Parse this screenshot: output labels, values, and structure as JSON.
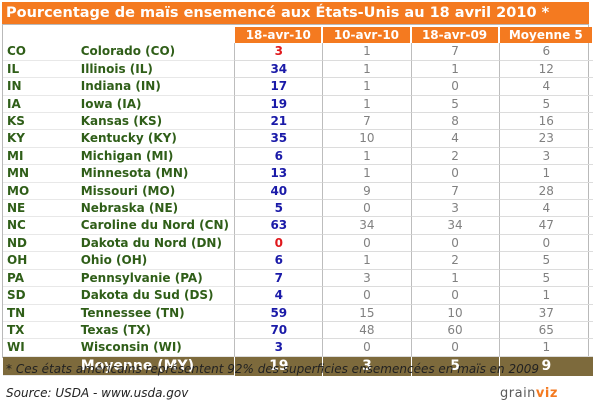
{
  "title": "Pourcentage de maïs ensemencé aux États-Unis au 18 avril 2010 *",
  "columns": [
    "18-avr-10",
    "10-avr-10",
    "18-avr-09",
    "Moyenne 5"
  ],
  "rows": [
    {
      "abbr": "CO",
      "name": "Colorado (CO)",
      "cur": "3",
      "cur_color": "#e0181c",
      "prev": "1",
      "lastyear": "7",
      "avg5": "6"
    },
    {
      "abbr": "IL",
      "name": "Illinois (IL)",
      "cur": "34",
      "cur_color": "#1a1aa8",
      "prev": "1",
      "lastyear": "1",
      "avg5": "12"
    },
    {
      "abbr": "IN",
      "name": "Indiana (IN)",
      "cur": "17",
      "cur_color": "#1a1aa8",
      "prev": "1",
      "lastyear": "0",
      "avg5": "4"
    },
    {
      "abbr": "IA",
      "name": "Iowa (IA)",
      "cur": "19",
      "cur_color": "#1a1aa8",
      "prev": "1",
      "lastyear": "5",
      "avg5": "5"
    },
    {
      "abbr": "KS",
      "name": "Kansas (KS)",
      "cur": "21",
      "cur_color": "#1a1aa8",
      "prev": "7",
      "lastyear": "8",
      "avg5": "16"
    },
    {
      "abbr": "KY",
      "name": "Kentucky (KY)",
      "cur": "35",
      "cur_color": "#1a1aa8",
      "prev": "10",
      "lastyear": "4",
      "avg5": "23"
    },
    {
      "abbr": "MI",
      "name": "Michigan (MI)",
      "cur": "6",
      "cur_color": "#1a1aa8",
      "prev": "1",
      "lastyear": "2",
      "avg5": "3"
    },
    {
      "abbr": "MN",
      "name": "Minnesota (MN)",
      "cur": "13",
      "cur_color": "#1a1aa8",
      "prev": "1",
      "lastyear": "0",
      "avg5": "1"
    },
    {
      "abbr": "MO",
      "name": "Missouri (MO)",
      "cur": "40",
      "cur_color": "#1a1aa8",
      "prev": "9",
      "lastyear": "7",
      "avg5": "28"
    },
    {
      "abbr": "NE",
      "name": "Nebraska (NE)",
      "cur": "5",
      "cur_color": "#1a1aa8",
      "prev": "0",
      "lastyear": "3",
      "avg5": "4"
    },
    {
      "abbr": "NC",
      "name": "Caroline du Nord (CN)",
      "cur": "63",
      "cur_color": "#1a1aa8",
      "prev": "34",
      "lastyear": "34",
      "avg5": "47"
    },
    {
      "abbr": "ND",
      "name": "Dakota du Nord (DN)",
      "cur": "0",
      "cur_color": "#e0181c",
      "prev": "0",
      "lastyear": "0",
      "avg5": "0"
    },
    {
      "abbr": "OH",
      "name": "Ohio (OH)",
      "cur": "6",
      "cur_color": "#1a1aa8",
      "prev": "1",
      "lastyear": "2",
      "avg5": "5"
    },
    {
      "abbr": "PA",
      "name": "Pennsylvanie (PA)",
      "cur": "7",
      "cur_color": "#1a1aa8",
      "prev": "3",
      "lastyear": "1",
      "avg5": "5"
    },
    {
      "abbr": "SD",
      "name": "Dakota du Sud (DS)",
      "cur": "4",
      "cur_color": "#1a1aa8",
      "prev": "0",
      "lastyear": "0",
      "avg5": "1"
    },
    {
      "abbr": "TN",
      "name": "Tennessee (TN)",
      "cur": "59",
      "cur_color": "#1a1aa8",
      "prev": "15",
      "lastyear": "10",
      "avg5": "37"
    },
    {
      "abbr": "TX",
      "name": "Texas (TX)",
      "cur": "70",
      "cur_color": "#1a1aa8",
      "prev": "48",
      "lastyear": "60",
      "avg5": "65"
    },
    {
      "abbr": "WI",
      "name": "Wisconsin (WI)",
      "cur": "3",
      "cur_color": "#1a1aa8",
      "prev": "0",
      "lastyear": "0",
      "avg5": "1"
    }
  ],
  "average": {
    "label": "Moyenne (MY)",
    "cur": "19",
    "prev": "3",
    "lastyear": "5",
    "avg5": "9"
  },
  "footnote": "* Ces états américains représentent 92% des superficies ensemencées en maïs en 2009",
  "source": "Source: USDA - www.usda.gov",
  "logo": {
    "part1": "grain",
    "part2": "viz"
  },
  "colors": {
    "accent": "#f47a20",
    "state_text": "#2f5e18",
    "current_value": "#1a1aa8",
    "zero_or_low": "#e0181c",
    "average_row": "#7d6a3c"
  }
}
